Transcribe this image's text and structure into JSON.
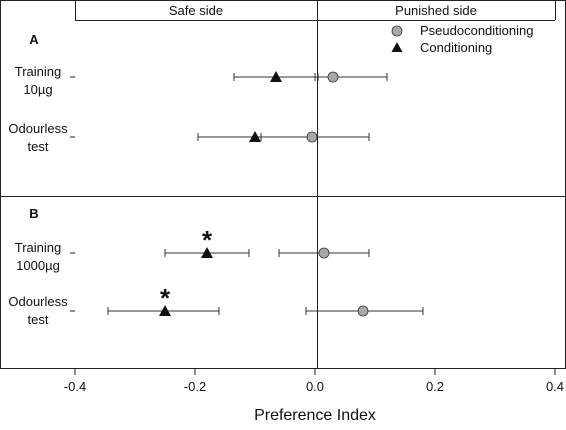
{
  "chart_data": {
    "type": "scatter",
    "xlabel": "Preference Index",
    "xlim": [
      -0.4,
      0.4
    ],
    "xticks": [
      -0.4,
      -0.2,
      0.0,
      0.2,
      0.4
    ],
    "xtick_labels": [
      "-0.4",
      "-0.2",
      "0.0",
      "0.2",
      "0.4"
    ],
    "header_left": "Safe side",
    "header_right": "Punished side",
    "legend": {
      "placement": "top-right",
      "entries": [
        {
          "name": "Pseudoconditioning",
          "marker": "circle",
          "color": "#a9a9a9"
        },
        {
          "name": "Conditioning",
          "marker": "triangle",
          "color": "#111111"
        }
      ]
    },
    "panels": [
      {
        "label": "A",
        "rows": [
          {
            "label_lines": [
              "Training",
              "10µg"
            ],
            "points": [
              {
                "series": "Conditioning",
                "x": -0.065,
                "err_low": -0.135,
                "err_high": 0.005,
                "star": false
              },
              {
                "series": "Pseudoconditioning",
                "x": 0.03,
                "err_low": 0.0,
                "err_high": 0.12,
                "star": false
              }
            ]
          },
          {
            "label_lines": [
              "Odourless",
              "test"
            ],
            "points": [
              {
                "series": "Conditioning",
                "x": -0.1,
                "err_low": -0.195,
                "err_high": -0.005,
                "star": false
              },
              {
                "series": "Pseudoconditioning",
                "x": -0.005,
                "err_low": -0.09,
                "err_high": 0.09,
                "star": false
              }
            ]
          }
        ]
      },
      {
        "label": "B",
        "rows": [
          {
            "label_lines": [
              "Training",
              "1000µg"
            ],
            "points": [
              {
                "series": "Conditioning",
                "x": -0.18,
                "err_low": -0.25,
                "err_high": -0.11,
                "star": true
              },
              {
                "series": "Pseudoconditioning",
                "x": 0.015,
                "err_low": -0.06,
                "err_high": 0.09,
                "star": false
              }
            ]
          },
          {
            "label_lines": [
              "Odourless",
              "test"
            ],
            "points": [
              {
                "series": "Conditioning",
                "x": -0.25,
                "err_low": -0.345,
                "err_high": -0.16,
                "star": true
              },
              {
                "series": "Pseudoconditioning",
                "x": 0.08,
                "err_low": -0.015,
                "err_high": 0.18,
                "star": false
              }
            ]
          }
        ]
      }
    ],
    "star_symbol": "*",
    "grid": false
  }
}
